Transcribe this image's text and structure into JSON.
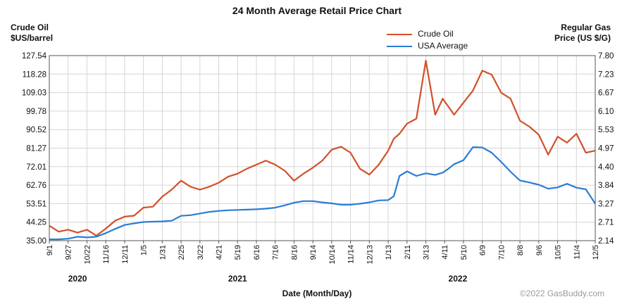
{
  "chart_data": {
    "type": "line",
    "title": "24 Month Average Retail Price Chart",
    "ylabel_left": "Crude Oil\n$US/barrel",
    "ylabel_right": "Regular Gas\nPrice (US $/G)",
    "xlabel": "Date (Month/Day)",
    "credit": "©2022 GasBuddy.com",
    "legend_position": "top-center",
    "grid": true,
    "left_ticks": [
      "35.00",
      "44.25",
      "53.51",
      "62.76",
      "72.01",
      "81.27",
      "90.52",
      "99.78",
      "109.03",
      "118.28",
      "127.54"
    ],
    "right_ticks": [
      "2.14",
      "2.71",
      "3.27",
      "3.84",
      "4.40",
      "4.97",
      "5.53",
      "6.10",
      "6.67",
      "7.23",
      "7.80"
    ],
    "ylim_left": [
      35.0,
      127.54
    ],
    "ylim_right": [
      2.14,
      7.8
    ],
    "x_ticks": [
      "9/1",
      "9/27",
      "10/22",
      "11/16",
      "12/11",
      "1/5",
      "1/31",
      "2/25",
      "3/22",
      "4/21",
      "5/19",
      "6/16",
      "7/16",
      "8/16",
      "9/14",
      "10/14",
      "11/14",
      "12/13",
      "1/13",
      "2/11",
      "3/13",
      "4/11",
      "5/10",
      "6/9",
      "7/10",
      "8/8",
      "9/6",
      "10/5",
      "11/4",
      "12/5"
    ],
    "years": [
      {
        "label": "2020",
        "tick_index": 1.5
      },
      {
        "label": "2021",
        "tick_index": 10
      },
      {
        "label": "2022",
        "tick_index": 21.7
      }
    ],
    "x": [
      0,
      0.5,
      1,
      1.5,
      2,
      2.5,
      3,
      3.5,
      4,
      4.5,
      5,
      5.5,
      6,
      6.5,
      7,
      7.5,
      8,
      8.5,
      9,
      9.5,
      10,
      10.5,
      11,
      11.5,
      12,
      12.5,
      13,
      13.5,
      14,
      14.5,
      15,
      15.5,
      16,
      16.5,
      17,
      17.5,
      18,
      18.3,
      18.6,
      19,
      19.5,
      20,
      20.5,
      20.9,
      21.2,
      21.5,
      22,
      22.5,
      23,
      23.5,
      24,
      24.5,
      25,
      25.5,
      26,
      26.5,
      27,
      27.5,
      28,
      28.5,
      29
    ],
    "series": [
      {
        "name": "Crude Oil",
        "axis": "left",
        "color": "#d2502a",
        "values": [
          42.5,
          39.5,
          40.5,
          39.0,
          40.5,
          37.5,
          41.0,
          45.0,
          47.0,
          47.5,
          51.5,
          52.0,
          57.0,
          60.5,
          65.0,
          62.0,
          60.5,
          62.0,
          64.0,
          67.0,
          68.5,
          71.0,
          73.0,
          75.0,
          73.0,
          70.0,
          65.0,
          68.5,
          71.5,
          75.0,
          80.5,
          82.0,
          79.0,
          71.0,
          68.0,
          73.0,
          80.0,
          86.0,
          88.5,
          93.5,
          96.0,
          125.0,
          98.0,
          106.0,
          102.0,
          98.0,
          104.0,
          110.0,
          120.0,
          118.0,
          109.0,
          106.0,
          95.0,
          92.0,
          88.0,
          78.0,
          87.0,
          84.0,
          88.5,
          79.0,
          80.0
        ]
      },
      {
        "name": "USA Average",
        "axis": "right",
        "color": "#2a7dd6",
        "values": [
          2.18,
          2.18,
          2.2,
          2.26,
          2.24,
          2.26,
          2.37,
          2.5,
          2.62,
          2.67,
          2.71,
          2.72,
          2.73,
          2.75,
          2.9,
          2.92,
          2.97,
          3.02,
          3.05,
          3.07,
          3.08,
          3.09,
          3.1,
          3.12,
          3.15,
          3.22,
          3.3,
          3.35,
          3.35,
          3.31,
          3.28,
          3.24,
          3.24,
          3.27,
          3.31,
          3.37,
          3.38,
          3.5,
          4.12,
          4.26,
          4.12,
          4.2,
          4.15,
          4.22,
          4.34,
          4.48,
          4.6,
          5.0,
          4.99,
          4.83,
          4.55,
          4.25,
          3.98,
          3.92,
          3.85,
          3.73,
          3.77,
          3.88,
          3.76,
          3.71,
          3.27
        ]
      }
    ]
  }
}
